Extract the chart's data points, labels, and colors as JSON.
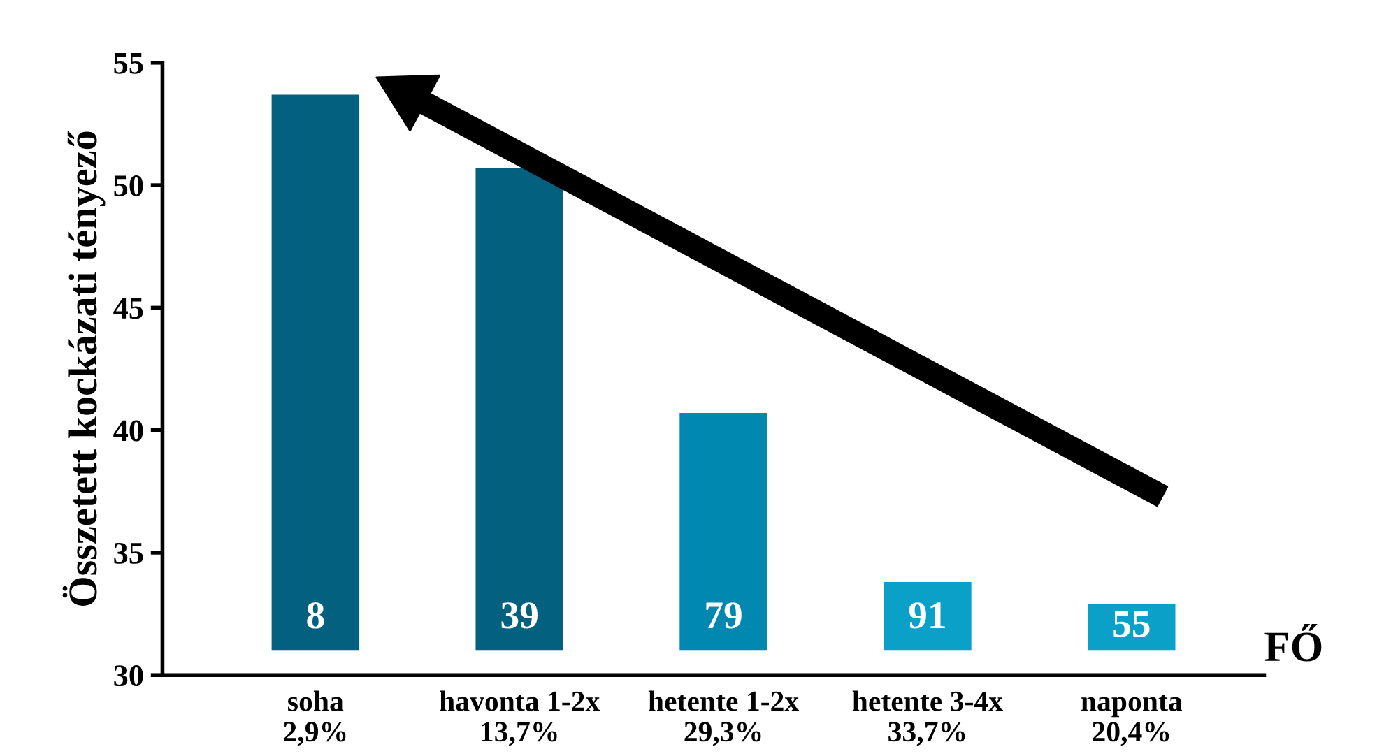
{
  "chart_data": {
    "type": "bar",
    "ylabel": "Összetett kockázati tényező",
    "categories": [
      "soha\n2,9%",
      "havonta 1-2x\n13,7%",
      "hetente 1-2x\n29,3%",
      "hetente 3-4x\n33,7%",
      "naponta\n20,4%"
    ],
    "base": [
      31.0,
      31.0,
      31.0,
      31.0,
      31.0
    ],
    "values": [
      22.7,
      19.7,
      9.7,
      2.8,
      1.9
    ],
    "colors": [
      "#04607f",
      "#04607f",
      "#0088b0",
      "#0aa0c8",
      "#0aa0c8"
    ],
    "ylim": [
      30,
      55
    ],
    "yticks": [
      30,
      35,
      40,
      45,
      50,
      55
    ],
    "grid": false,
    "annotations": [
      "8",
      "39",
      "79",
      "91",
      "55",
      "FŐ"
    ]
  }
}
